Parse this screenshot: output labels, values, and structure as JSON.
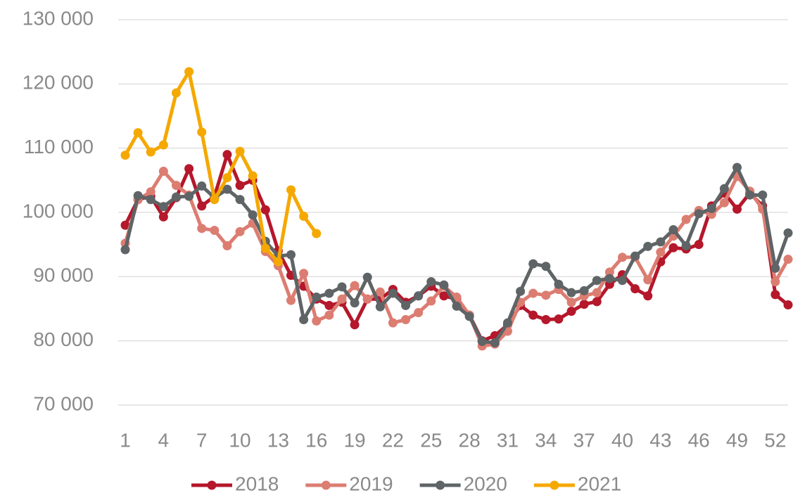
{
  "chart_data": {
    "type": "line",
    "x": [
      1,
      2,
      3,
      4,
      5,
      6,
      7,
      8,
      9,
      10,
      11,
      12,
      13,
      14,
      15,
      16,
      17,
      18,
      19,
      20,
      21,
      22,
      23,
      24,
      25,
      26,
      27,
      28,
      29,
      30,
      31,
      32,
      33,
      34,
      35,
      36,
      37,
      38,
      39,
      40,
      41,
      42,
      43,
      44,
      45,
      46,
      47,
      48,
      49,
      50,
      51,
      52,
      53
    ],
    "xlim": [
      1,
      53
    ],
    "xticks": [
      1,
      4,
      7,
      10,
      13,
      16,
      19,
      22,
      25,
      28,
      31,
      34,
      37,
      40,
      43,
      46,
      49,
      52
    ],
    "ylim": [
      70000,
      130000
    ],
    "yticks": [
      {
        "value": 70000,
        "label": "70 000"
      },
      {
        "value": 80000,
        "label": "80 000"
      },
      {
        "value": 90000,
        "label": "90 000"
      },
      {
        "value": 100000,
        "label": "100 000"
      },
      {
        "value": 110000,
        "label": "110 000"
      },
      {
        "value": 120000,
        "label": "120 000"
      },
      {
        "value": 130000,
        "label": "130 000"
      }
    ],
    "grid": true,
    "legend": "bottom",
    "series": [
      {
        "name": "2018",
        "color": "#b5172b",
        "values": [
          98000,
          102000,
          102500,
          99300,
          102300,
          106800,
          101000,
          102500,
          109000,
          104200,
          105000,
          100400,
          94000,
          90200,
          88500,
          86500,
          85500,
          86000,
          82500,
          86500,
          86500,
          88000,
          86000,
          87000,
          88500,
          87000,
          86500,
          84000,
          80000,
          80800,
          82500,
          85500,
          84000,
          83300,
          83400,
          84600,
          85700,
          86100,
          88800,
          90300,
          88100,
          87000,
          92300,
          94500,
          94300,
          95000,
          101000,
          103000,
          100500,
          103000,
          101000,
          87200,
          85600
        ]
      },
      {
        "name": "2019",
        "color": "#dc7d72",
        "values": [
          95200,
          102000,
          103200,
          106400,
          104200,
          102700,
          97500,
          97200,
          94800,
          97000,
          98300,
          93900,
          91700,
          86300,
          90500,
          83100,
          84000,
          86500,
          88600,
          86500,
          87600,
          82800,
          83300,
          84400,
          86200,
          88500,
          86800,
          84000,
          79200,
          79500,
          81500,
          86000,
          87400,
          87100,
          88000,
          86000,
          87000,
          87500,
          90700,
          93000,
          93000,
          89500,
          93800,
          96300,
          98900,
          100300,
          99700,
          101500,
          105600,
          103300,
          100500,
          89200,
          92700
        ]
      },
      {
        "name": "2020",
        "color": "#5f6466",
        "values": [
          94200,
          102600,
          102000,
          100900,
          102400,
          102500,
          104100,
          102300,
          103600,
          102000,
          99600,
          95500,
          93200,
          93400,
          83300,
          86800,
          87400,
          88400,
          85900,
          89900,
          85300,
          87400,
          85500,
          87000,
          89200,
          88700,
          85400,
          83800,
          79900,
          79700,
          82800,
          87700,
          92000,
          91600,
          88800,
          87500,
          87800,
          89400,
          89700,
          89400,
          93200,
          94700,
          95400,
          97300,
          94800,
          99800,
          100600,
          103700,
          107000,
          102700,
          102700,
          91300,
          96800
        ]
      },
      {
        "name": "2021",
        "color": "#f5a800",
        "values": [
          108900,
          112400,
          109400,
          110500,
          118600,
          121900,
          112500,
          102000,
          105400,
          109500,
          105700,
          94400,
          92300,
          103500,
          99400,
          96700,
          null,
          null,
          null,
          null,
          null,
          null,
          null,
          null,
          null,
          null,
          null,
          null,
          null,
          null,
          null,
          null,
          null,
          null,
          null,
          null,
          null,
          null,
          null,
          null,
          null,
          null,
          null,
          null,
          null,
          null,
          null,
          null,
          null,
          null,
          null,
          null,
          null
        ]
      }
    ]
  }
}
